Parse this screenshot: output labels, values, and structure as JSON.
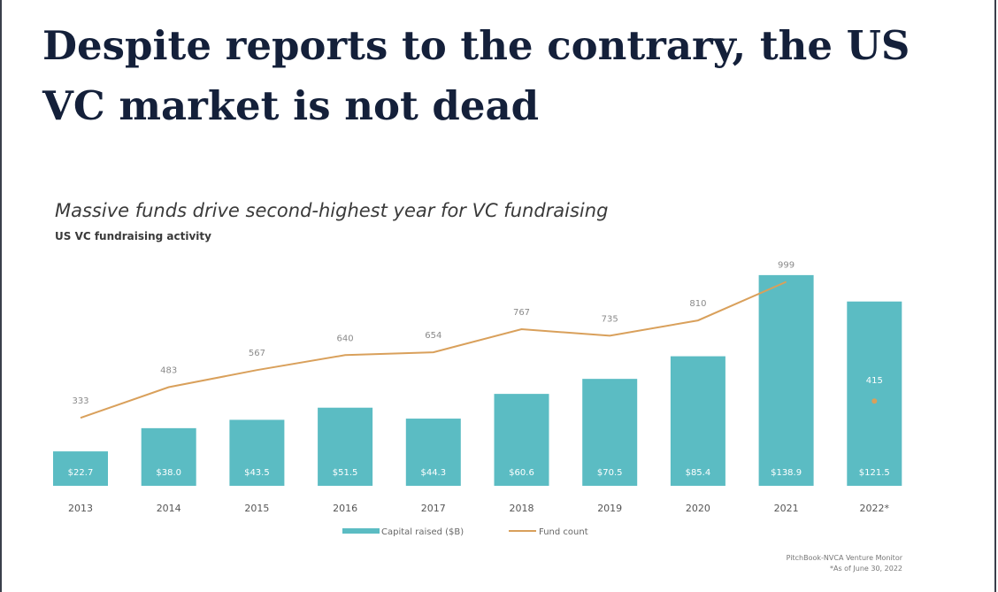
{
  "page": {
    "headline_line1": "Despite reports to the contrary, the US",
    "headline_line2": "VC market is not dead"
  },
  "chart_data": {
    "type": "bar",
    "title": "Massive funds drive second-highest year for VC fundraising",
    "subtitle": "US VC fundraising activity",
    "categories": [
      "2013",
      "2014",
      "2015",
      "2016",
      "2017",
      "2018",
      "2019",
      "2020",
      "2021",
      "2022*"
    ],
    "series": [
      {
        "name": "Capital raised ($B)",
        "kind": "bar",
        "values": [
          22.7,
          38.0,
          43.5,
          51.5,
          44.3,
          60.6,
          70.5,
          85.4,
          138.9,
          121.5
        ],
        "labels": [
          "$22.7",
          "$38.0",
          "$43.5",
          "$51.5",
          "$44.3",
          "$60.6",
          "$70.5",
          "$85.4",
          "$138.9",
          "$121.5"
        ],
        "color": "#5bbcc3"
      },
      {
        "name": "Fund count",
        "kind": "line",
        "values": [
          333,
          483,
          567,
          640,
          654,
          767,
          735,
          810,
          999,
          415
        ],
        "labels": [
          "333",
          "483",
          "567",
          "640",
          "654",
          "767",
          "735",
          "810",
          "999",
          "415"
        ],
        "color": "#d9a05b"
      }
    ],
    "ylim_bar": [
      0,
      140
    ],
    "ylim_line": [
      0,
      1040
    ],
    "legend_position": "bottom-center",
    "grid": false,
    "source_line1": "PitchBook-NVCA Venture Monitor",
    "source_line2": "*As of June 30, 2022"
  }
}
